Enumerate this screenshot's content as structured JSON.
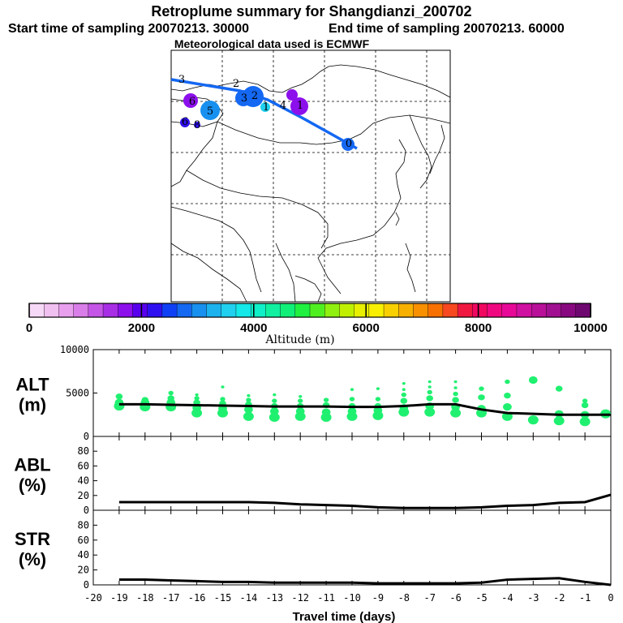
{
  "header": {
    "title": "Retroplume summary for Shangdianzi_200702",
    "start_label": "Start time of sampling 20070213. 30000",
    "end_label": "End time of sampling 20070213. 60000",
    "met_label": "Meteorological data used is ECMWF"
  },
  "colorbar": {
    "ticks": [
      "0",
      "2000",
      "4000",
      "6000",
      "8000",
      "10000"
    ],
    "label": "Altitude (m)",
    "colors": [
      "#f6d9f6",
      "#f0c0f0",
      "#e8a0ee",
      "#d97ee8",
      "#c455e6",
      "#a82ee6",
      "#8c10ec",
      "#5800ee",
      "#2f10f0",
      "#1040f5",
      "#1468f2",
      "#1890f0",
      "#1cb2ee",
      "#20d0ee",
      "#14e8e8",
      "#10f0c8",
      "#10f0a0",
      "#10f078",
      "#20f040",
      "#50f020",
      "#90f010",
      "#c0f000",
      "#e8f000",
      "#f8f000",
      "#f8d000",
      "#f8b000",
      "#f89000",
      "#f87000",
      "#f84820",
      "#f01840",
      "#f00860",
      "#f00880",
      "#e80898",
      "#d010a0",
      "#b81098",
      "#a01090",
      "#880880",
      "#6e0870"
    ]
  },
  "map": {
    "trajectory_labels": [
      {
        "text": "0",
        "color": "#1468f2"
      },
      {
        "text": "1",
        "color": "#8c10ec"
      },
      {
        "text": "1",
        "color": "#20d0ee"
      },
      {
        "text": "2",
        "color": "#1468f2"
      },
      {
        "text": "2",
        "color": "#1468f2"
      },
      {
        "text": "3",
        "color": "#8c10ec"
      },
      {
        "text": "3",
        "color": "#1468f2"
      },
      {
        "text": "4",
        "color": "#1468f2"
      },
      {
        "text": "5",
        "color": "#1890f0"
      },
      {
        "text": "6",
        "color": "#8c10ec"
      },
      {
        "text": "6",
        "color": "#2f10f0"
      },
      {
        "text": "8",
        "color": "#2f10f0"
      }
    ]
  },
  "chart_data": [
    {
      "type": "line",
      "panel": "ALT",
      "ylabel_line1": "ALT",
      "ylabel_line2": "(m)",
      "ylim": [
        0,
        10000
      ],
      "yticks": [
        "10000",
        "5000",
        "0"
      ],
      "x": [
        -19,
        -18,
        -17,
        -16,
        -15,
        -14,
        -13,
        -12,
        -11,
        -10,
        -9,
        -8,
        -7,
        -6,
        -5,
        -4,
        -3,
        -2,
        -1,
        0
      ],
      "series": [
        {
          "name": "mean altitude",
          "values": [
            3700,
            3700,
            3650,
            3600,
            3550,
            3500,
            3450,
            3450,
            3450,
            3400,
            3400,
            3500,
            3700,
            3700,
            3100,
            2700,
            2600,
            2500,
            2500,
            2500
          ]
        }
      ],
      "clusters": [
        {
          "x": -19,
          "alts": [
            3500,
            3900,
            4600
          ]
        },
        {
          "x": -18,
          "alts": [
            3400,
            3900,
            4200
          ]
        },
        {
          "x": -17,
          "alts": [
            3400,
            3900,
            4400,
            5000
          ]
        },
        {
          "x": -16,
          "alts": [
            2700,
            3300,
            3900,
            4400,
            4800
          ]
        },
        {
          "x": -15,
          "alts": [
            2700,
            3200,
            3800,
            4300,
            5700
          ]
        },
        {
          "x": -14,
          "alts": [
            2300,
            3100,
            3700,
            4200,
            4700
          ]
        },
        {
          "x": -13,
          "alts": [
            2200,
            2900,
            3500,
            4100,
            4800
          ]
        },
        {
          "x": -12,
          "alts": [
            2300,
            2900,
            3500,
            4100,
            4600
          ]
        },
        {
          "x": -11,
          "alts": [
            2200,
            2800,
            3600,
            4200
          ]
        },
        {
          "x": -10,
          "alts": [
            2300,
            2900,
            3500,
            4300,
            5400
          ]
        },
        {
          "x": -9,
          "alts": [
            2400,
            3000,
            3500,
            4300,
            5500
          ]
        },
        {
          "x": -8,
          "alts": [
            2800,
            3300,
            4100,
            4800,
            5400,
            6100
          ]
        },
        {
          "x": -7,
          "alts": [
            2800,
            3500,
            4400,
            5100,
            5700,
            6300
          ]
        },
        {
          "x": -6,
          "alts": [
            2700,
            3400,
            4200,
            4900,
            5600,
            6300
          ]
        },
        {
          "x": -5,
          "alts": [
            2700,
            3200,
            4500,
            5500
          ]
        },
        {
          "x": -4,
          "alts": [
            2300,
            3400,
            4700,
            6300
          ]
        },
        {
          "x": -3,
          "alts": [
            1900,
            6500
          ]
        },
        {
          "x": -2,
          "alts": [
            1800,
            2600,
            5500
          ]
        },
        {
          "x": -1,
          "alts": [
            1700,
            2500,
            3600,
            4100
          ]
        },
        {
          "x": -0.2,
          "alts": [
            2600
          ]
        }
      ]
    },
    {
      "type": "line",
      "panel": "ABL",
      "ylabel_line1": "ABL",
      "ylabel_line2": "(%)",
      "ylim": [
        0,
        100
      ],
      "yticks": [
        "80",
        "60",
        "40",
        "20",
        "0"
      ],
      "x": [
        -19,
        -18,
        -17,
        -16,
        -15,
        -14,
        -13,
        -12,
        -11,
        -10,
        -9,
        -8,
        -7,
        -6,
        -5,
        -4,
        -3,
        -2,
        -1,
        0
      ],
      "series": [
        {
          "name": "ABL fraction",
          "values": [
            11,
            11,
            11,
            11,
            11,
            11,
            10,
            8,
            7,
            6,
            4,
            3,
            3,
            3,
            4,
            6,
            7,
            10,
            11,
            21
          ]
        }
      ]
    },
    {
      "type": "line",
      "panel": "STR",
      "ylabel_line1": "STR",
      "ylabel_line2": "(%)",
      "ylim": [
        0,
        100
      ],
      "yticks": [
        "80",
        "60",
        "40",
        "20",
        "0"
      ],
      "x": [
        -19,
        -18,
        -17,
        -16,
        -15,
        -14,
        -13,
        -12,
        -11,
        -10,
        -9,
        -8,
        -7,
        -6,
        -5,
        -4,
        -3,
        -2,
        -1,
        0
      ],
      "series": [
        {
          "name": "stratospheric fraction",
          "values": [
            7,
            7,
            6,
            5,
            4,
            4,
            3,
            3,
            3,
            3,
            2,
            2,
            2,
            2,
            3,
            7,
            8,
            9,
            4,
            0
          ]
        }
      ],
      "xticks": [
        "-20",
        "-19",
        "-18",
        "-17",
        "-16",
        "-15",
        "-14",
        "-13",
        "-12",
        "-11",
        "-10",
        "-9",
        "-8",
        "-7",
        "-6",
        "-5",
        "-4",
        "-3",
        "-2",
        "-1",
        "0"
      ],
      "xlabel": "Travel time (days)"
    }
  ]
}
